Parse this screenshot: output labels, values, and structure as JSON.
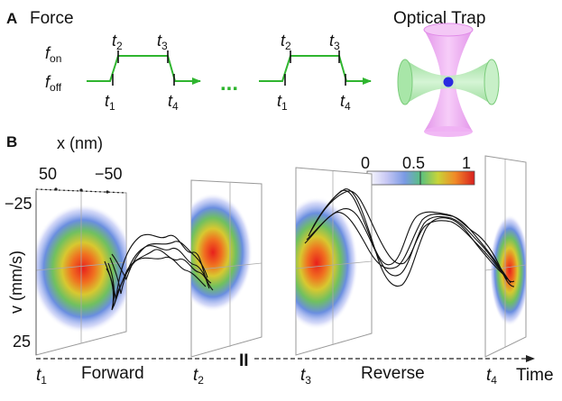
{
  "panel_a": {
    "letter": "A",
    "title": "Force",
    "f_on_var": "f",
    "f_on_sub": "on",
    "f_off_var": "f",
    "f_off_sub": "off",
    "t_var": "t",
    "t_subs": [
      "1",
      "2",
      "3",
      "4"
    ],
    "ellipsis": "...",
    "trap_title": "Optical Trap",
    "colors": {
      "pulse": "#2fb52f",
      "beam_vertical": "#e8a0f0",
      "beam_horizontal": "#a8e6a8",
      "bead": "#2a2ae0"
    }
  },
  "panel_b": {
    "letter": "B",
    "x_axis_label": "x (nm)",
    "x_ticks": [
      "50",
      "−50"
    ],
    "v_axis_label": "v (mm/s)",
    "v_ticks": [
      "−25",
      "25"
    ],
    "colorbar_ticks": [
      "0",
      "0.5",
      "1"
    ],
    "time_marks": [
      "1",
      "2",
      "3",
      "4"
    ],
    "t_var": "t",
    "forward_label": "Forward",
    "reverse_label": "Reverse",
    "time_label": "Time",
    "break_mark": "II"
  }
}
